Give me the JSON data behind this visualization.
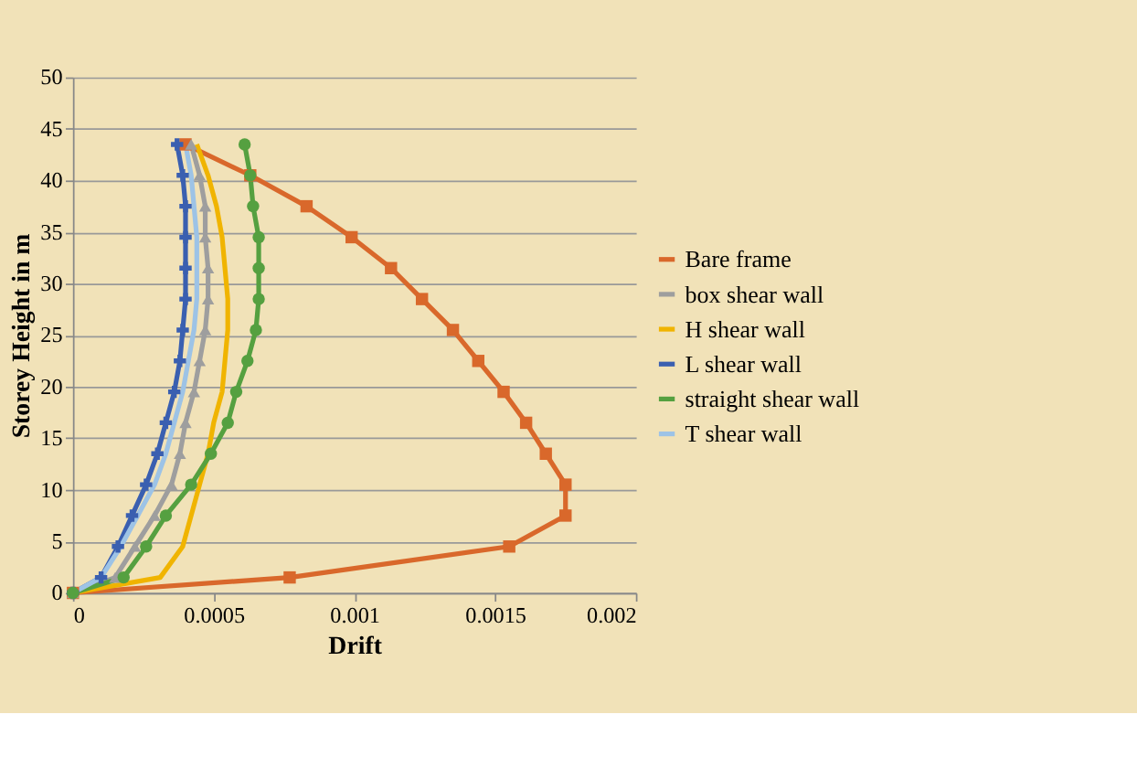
{
  "chart_data": {
    "type": "line",
    "xlabel": "Drift",
    "ylabel": "Storey Height in m",
    "xlim": [
      0,
      0.002
    ],
    "xticks": [
      0,
      0.0005,
      0.001,
      0.0015,
      0.002
    ],
    "ylim": [
      0,
      50
    ],
    "yticks": [
      0,
      5,
      10,
      15,
      20,
      25,
      30,
      35,
      40,
      45,
      50
    ],
    "grid": "y",
    "legend": "right",
    "line_style": "solid",
    "series": [
      {
        "name": "Bare frame",
        "color": "#d9682b",
        "marker": "square",
        "x": [
          0,
          0.00077,
          0.00155,
          0.00175,
          0.00175,
          0.00168,
          0.00161,
          0.00153,
          0.00144,
          0.00135,
          0.00124,
          0.00113,
          0.00099,
          0.00083,
          0.00063,
          0.0004
        ],
        "values": [
          0,
          1.5,
          4.5,
          7.5,
          10.5,
          13.5,
          16.5,
          19.5,
          22.5,
          25.5,
          28.5,
          31.5,
          34.5,
          37.5,
          40.5,
          43.5
        ]
      },
      {
        "name": "box shear wall",
        "color": "#9e9e9e",
        "marker": "triangle",
        "x": [
          0,
          0.00015,
          0.00022,
          0.00029,
          0.00035,
          0.00038,
          0.0004,
          0.00043,
          0.00045,
          0.00047,
          0.00048,
          0.00048,
          0.00047,
          0.00047,
          0.00045,
          0.00042
        ],
        "values": [
          0,
          1.5,
          4.5,
          7.5,
          10.5,
          13.5,
          16.5,
          19.5,
          22.5,
          25.5,
          28.5,
          31.5,
          34.5,
          37.5,
          40.5,
          43.5
        ]
      },
      {
        "name": "H shear wall",
        "color": "#f0b400",
        "marker": "none",
        "x": [
          0,
          0.00031,
          0.00039,
          0.00042,
          0.00045,
          0.00048,
          0.0005,
          0.00053,
          0.00054,
          0.00055,
          0.00055,
          0.00054,
          0.00053,
          0.00051,
          0.00048,
          0.00044
        ],
        "values": [
          0,
          1.5,
          4.5,
          7.5,
          10.5,
          13.5,
          16.5,
          19.5,
          22.5,
          25.5,
          28.5,
          31.5,
          34.5,
          37.5,
          40.5,
          43.5
        ]
      },
      {
        "name": "L shear wall",
        "color": "#3a5fb0",
        "marker": "cross",
        "x": [
          0,
          0.0001,
          0.00016,
          0.00021,
          0.00026,
          0.0003,
          0.00033,
          0.00036,
          0.00038,
          0.00039,
          0.0004,
          0.0004,
          0.0004,
          0.0004,
          0.00039,
          0.00037
        ],
        "values": [
          0,
          1.5,
          4.5,
          7.5,
          10.5,
          13.5,
          16.5,
          19.5,
          22.5,
          25.5,
          28.5,
          31.5,
          34.5,
          37.5,
          40.5,
          43.5
        ]
      },
      {
        "name": "straight shear wall",
        "color": "#55a040",
        "marker": "circle",
        "x": [
          0,
          0.00018,
          0.00026,
          0.00033,
          0.00042,
          0.00049,
          0.00055,
          0.00058,
          0.00062,
          0.00065,
          0.00066,
          0.00066,
          0.00066,
          0.00064,
          0.00063,
          0.00061
        ],
        "values": [
          0,
          1.5,
          4.5,
          7.5,
          10.5,
          13.5,
          16.5,
          19.5,
          22.5,
          25.5,
          28.5,
          31.5,
          34.5,
          37.5,
          40.5,
          43.5
        ]
      },
      {
        "name": "T shear wall",
        "color": "#9dc3e6",
        "marker": "none",
        "x": [
          0,
          0.0001,
          0.00017,
          0.00023,
          0.00029,
          0.00033,
          0.00036,
          0.00039,
          0.00041,
          0.00043,
          0.00044,
          0.00044,
          0.00044,
          0.00043,
          0.00042,
          0.0004
        ],
        "values": [
          0,
          1.5,
          4.5,
          7.5,
          10.5,
          13.5,
          16.5,
          19.5,
          22.5,
          25.5,
          28.5,
          31.5,
          34.5,
          37.5,
          40.5,
          43.5
        ]
      }
    ]
  }
}
